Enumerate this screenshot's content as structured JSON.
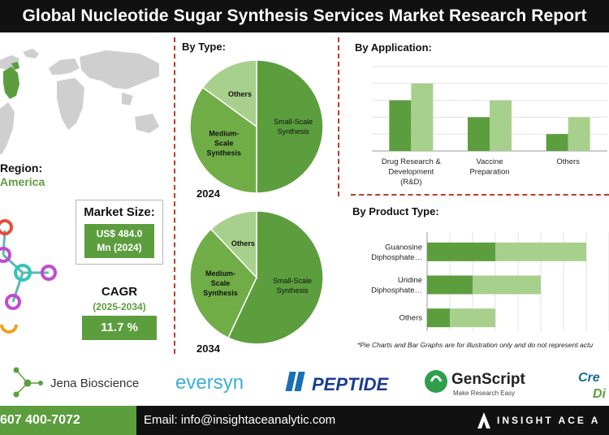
{
  "header": {
    "title": "Global Nucleotide Sugar Synthesis Services Market Research Report"
  },
  "region": {
    "label": "Region:",
    "value": "America"
  },
  "market_size": {
    "title": "Market Size:",
    "value_line1": "US$ 484.0",
    "value_line2": "Mn (2024)"
  },
  "cagr": {
    "title": "CAGR",
    "period": "(2025-2034)",
    "value": "11.7 %"
  },
  "colors": {
    "dark_green": "#5c9e3e",
    "light_green": "#a8d08d",
    "mid_green": "#70ad47",
    "divider": "#c0392b",
    "bar_black": "#111111"
  },
  "chart_data": [
    {
      "type": "pie",
      "section": "By Type:",
      "year": "2024",
      "slices": [
        {
          "label": "Small-Scale Synthesis",
          "value": 50
        },
        {
          "label": "Medium-Scale Synthesis",
          "value": 35
        },
        {
          "label": "Others",
          "value": 15
        }
      ]
    },
    {
      "type": "pie",
      "year": "2034",
      "slices": [
        {
          "label": "Small-Scale Synthesis",
          "value": 57
        },
        {
          "label": "Medium-Scale Synthesis",
          "value": 31
        },
        {
          "label": "Others",
          "value": 12
        }
      ]
    },
    {
      "type": "bar",
      "section": "By Application:",
      "categories": [
        "Drug Research & Development (R&D)",
        "Vaccine Preparation",
        "Others"
      ],
      "series": [
        {
          "values": [
            3,
            2,
            1
          ]
        },
        {
          "values": [
            4,
            3,
            2
          ]
        }
      ],
      "ylim": [
        0,
        5
      ]
    },
    {
      "type": "bar",
      "orientation": "horizontal",
      "section": "By Product Type:",
      "categories": [
        "Guanosine Diphosphate…",
        "Uridine Diphosphate…",
        "Others"
      ],
      "series": [
        {
          "values": [
            3,
            2,
            1
          ]
        },
        {
          "values": [
            4,
            3,
            2
          ]
        }
      ],
      "xlim": [
        0,
        8
      ]
    }
  ],
  "disclaimer": "*Pie Charts and Bar Graphs are for illustration only and do not represent actu",
  "logos": [
    "Jena Bioscience",
    "eversyn",
    "PEPTIDE",
    "GenScript",
    "Make Research Easy",
    "Cre",
    "Di"
  ],
  "footer": {
    "phone": "607 400-7072",
    "email": "Email: info@insightaceanalytic.com",
    "brand": "INSIGHT ACE A"
  }
}
